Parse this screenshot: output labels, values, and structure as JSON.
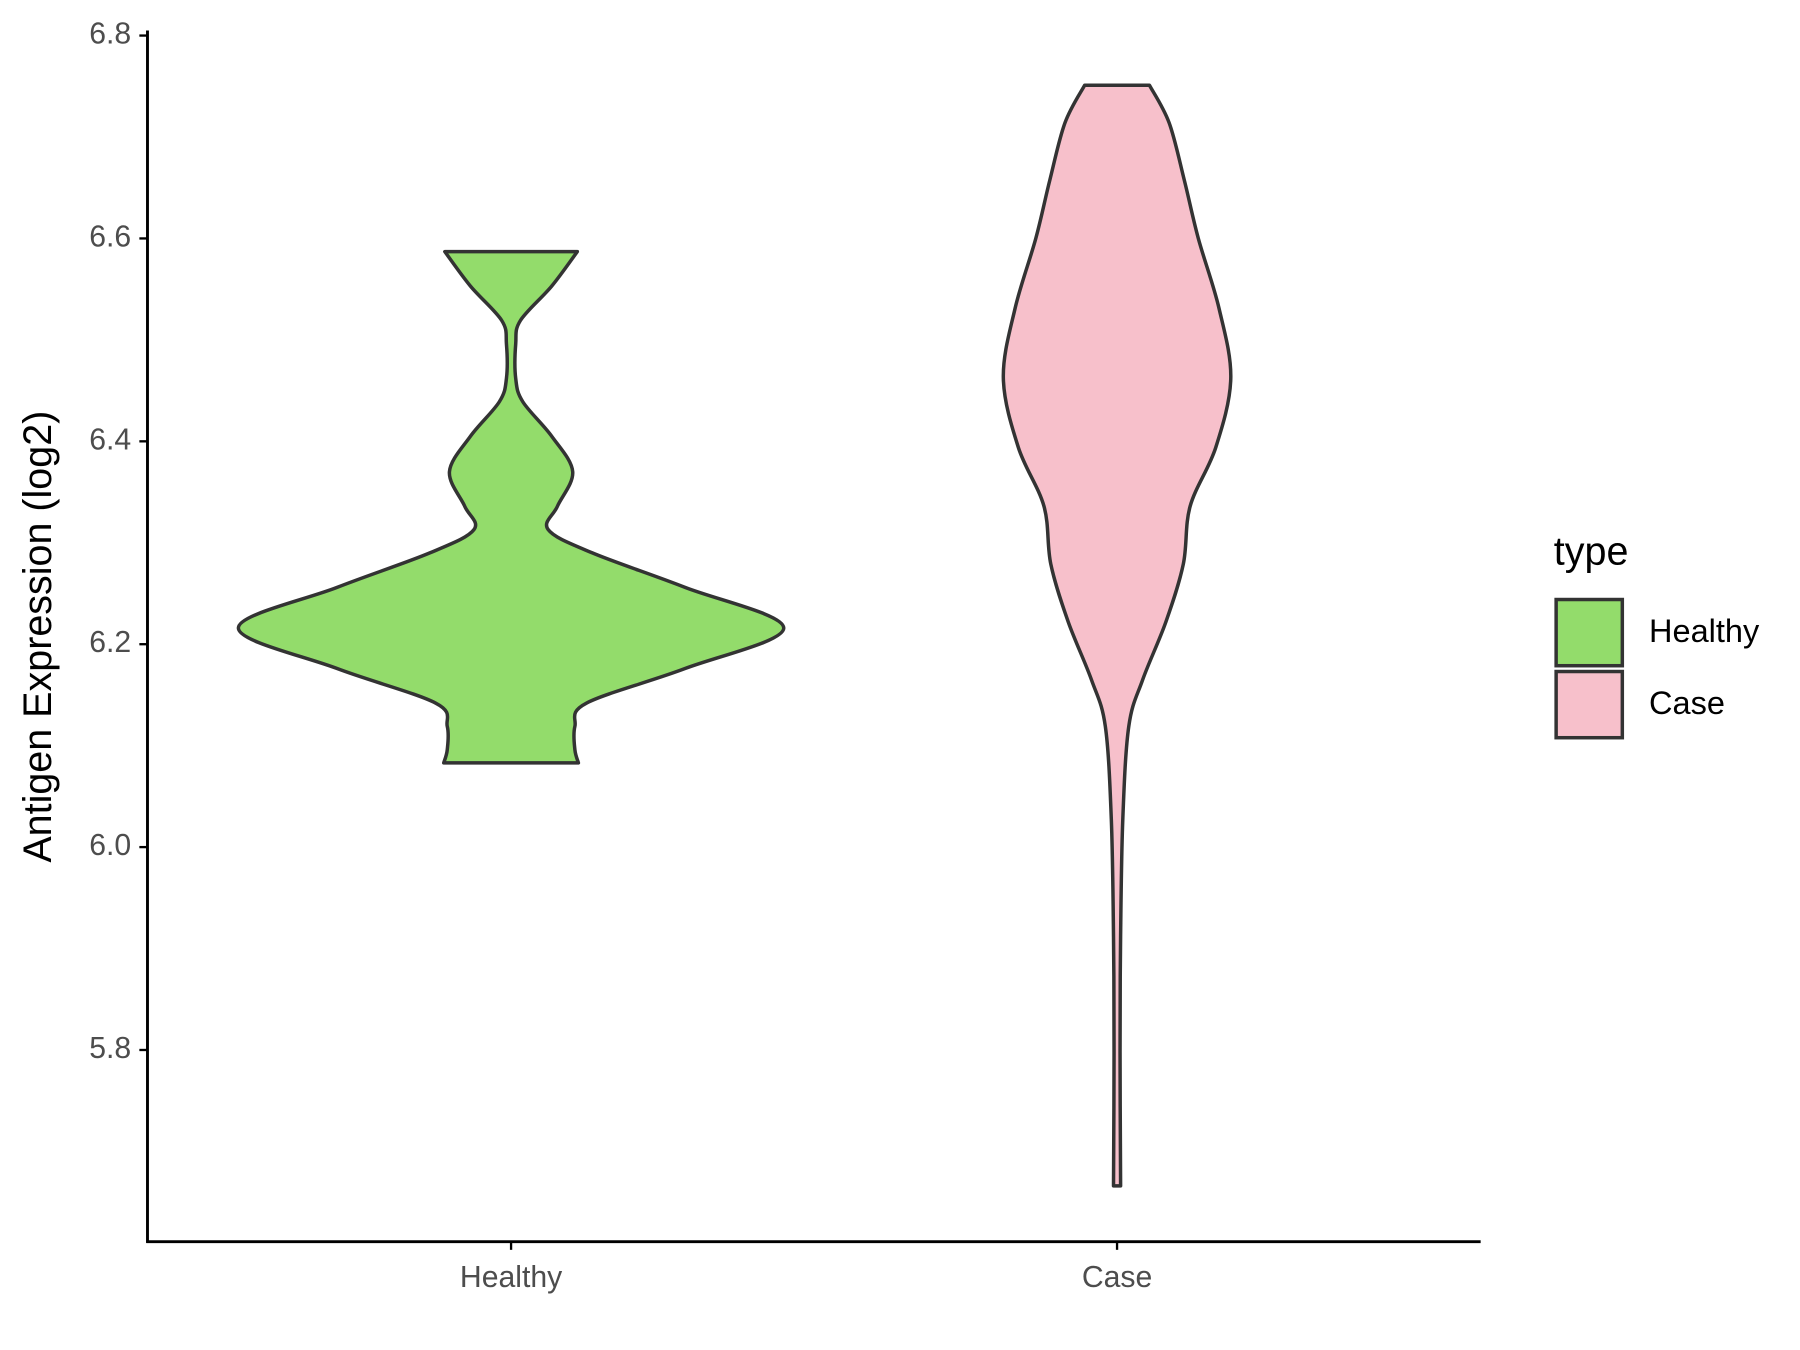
{
  "chart_data": {
    "type": "violin",
    "y_label": "Antigen Expression (log2)",
    "categories": [
      "Healthy",
      "Case"
    ],
    "legend_title": "type",
    "legend_position": "right",
    "ylim": [
      5.611,
      6.805
    ],
    "yticks": [
      5.8,
      {
        "value": 6,
        "label": "6.0"
      },
      6.2,
      6.4,
      6.6,
      6.8
    ],
    "series": [
      {
        "name": "Healthy",
        "color": "#93dc6b",
        "y": [
          6.587,
          6.553,
          6.519,
          6.496,
          6.462,
          6.439,
          6.405,
          6.37,
          6.336,
          6.313,
          6.29,
          6.256,
          6.216,
          6.176,
          6.142,
          6.119,
          6.096,
          6.083
        ],
        "density": [
          0.243,
          0.149,
          0.034,
          0.017,
          0.017,
          0.043,
          0.149,
          0.226,
          0.17,
          0.136,
          0.298,
          0.638,
          1.0,
          0.638,
          0.277,
          0.234,
          0.234,
          0.247
        ]
      },
      {
        "name": "Case",
        "color": "#f7c0cb",
        "y": [
          6.751,
          6.714,
          6.657,
          6.6,
          6.531,
          6.462,
          6.394,
          6.336,
          6.279,
          6.222,
          6.165,
          6.119,
          6.027,
          5.912,
          5.798,
          5.666
        ],
        "density": [
          0.119,
          0.191,
          0.247,
          0.298,
          0.374,
          0.417,
          0.362,
          0.268,
          0.243,
          0.179,
          0.094,
          0.043,
          0.021,
          0.013,
          0.011,
          0.013
        ]
      }
    ]
  }
}
